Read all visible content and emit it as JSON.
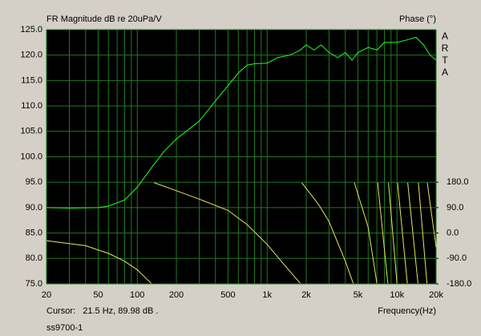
{
  "chart_data": {
    "type": "line",
    "title": "FR Magnitude dB re 20uPa/V",
    "y2_title": "Phase (°)",
    "watermark": "ARTA",
    "x_label": "Frequency(Hz)",
    "cursor": "Cursor:   21.5 Hz, 89.98 dB .",
    "footer": "ss9700-1",
    "xscale": "log",
    "xlim": [
      20,
      20000
    ],
    "xticks": [
      20,
      50,
      100,
      200,
      500,
      {
        "value": 1000,
        "label": "1k"
      },
      {
        "value": 2000,
        "label": "2k"
      },
      {
        "value": 5000,
        "label": "5k"
      },
      {
        "value": 10000,
        "label": "10k"
      },
      {
        "value": 20000,
        "label": "20k"
      }
    ],
    "minor_xticks": [
      30,
      40,
      60,
      70,
      80,
      90,
      300,
      400,
      600,
      700,
      800,
      900,
      3000,
      4000,
      6000,
      7000,
      8000,
      9000
    ],
    "ylim": [
      75,
      125
    ],
    "yticks": [
      {
        "value": 75,
        "label": "75.0"
      },
      {
        "value": 80,
        "label": "80.0"
      },
      {
        "value": 85,
        "label": "85.0"
      },
      {
        "value": 90,
        "label": "90.0"
      },
      {
        "value": 95,
        "label": "95.0"
      },
      {
        "value": 100,
        "label": "100.0"
      },
      {
        "value": 105,
        "label": "105.0"
      },
      {
        "value": 110,
        "label": "110.0"
      },
      {
        "value": 115,
        "label": "115.0"
      },
      {
        "value": 120,
        "label": "120.0"
      },
      {
        "value": 125,
        "label": "125.0"
      }
    ],
    "y2lim": [
      -180,
      720
    ],
    "y2ticks": [
      {
        "value": -180,
        "label": "-180.0"
      },
      {
        "value": -90,
        "label": "-90.0"
      },
      {
        "value": 0,
        "label": "0.0"
      },
      {
        "value": 90,
        "label": "90.0"
      },
      {
        "value": 180,
        "label": "180.0"
      }
    ],
    "grid": true,
    "grid_color": "#1f7a1f",
    "background": "#000000",
    "series": [
      {
        "name": "Magnitude",
        "color": "#22ff22",
        "x": [
          20,
          30,
          50,
          60,
          80,
          100,
          130,
          160,
          200,
          300,
          400,
          500,
          600,
          700,
          800,
          1000,
          1200,
          1500,
          1800,
          2000,
          2300,
          2600,
          3000,
          3500,
          4000,
          4500,
          5000,
          6000,
          7000,
          8000,
          10000,
          12000,
          14000,
          16000,
          18000,
          20000
        ],
        "values": [
          90,
          89.9,
          90,
          90.3,
          91.5,
          94,
          98,
          101,
          103.5,
          107,
          111,
          114,
          116.5,
          118,
          118.3,
          118.4,
          119.5,
          120,
          121,
          122,
          121,
          122,
          120.5,
          119.5,
          120.5,
          119,
          120.5,
          121.5,
          121,
          122.5,
          122.5,
          123,
          123.5,
          122,
          120,
          119
        ]
      },
      {
        "name": "Phase",
        "color": "#e6e65a",
        "axis": "y2",
        "x": [
          20,
          40,
          60,
          80,
          100,
          128,
          131,
          135,
          200,
          300,
          500,
          700,
          1000,
          1400,
          1800,
          1820,
          1850,
          2500,
          3000,
          4000,
          4600,
          4650,
          4700,
          6000,
          7000,
          7050,
          7100,
          8500,
          8550,
          8600,
          10000,
          10050,
          10100,
          12000,
          12050,
          12100,
          14500,
          14550,
          14600,
          17000,
          17050,
          17100,
          20000
        ],
        "values": [
          -27,
          -45,
          -72,
          -100,
          -130,
          -178,
          null,
          178,
          150,
          120,
          80,
          30,
          -40,
          -120,
          -178,
          null,
          178,
          100,
          40,
          -100,
          -178,
          null,
          178,
          20,
          -178,
          null,
          178,
          -178,
          null,
          178,
          -178,
          null,
          178,
          -178,
          null,
          178,
          -178,
          null,
          178,
          -178,
          null,
          178,
          -50
        ]
      }
    ]
  }
}
